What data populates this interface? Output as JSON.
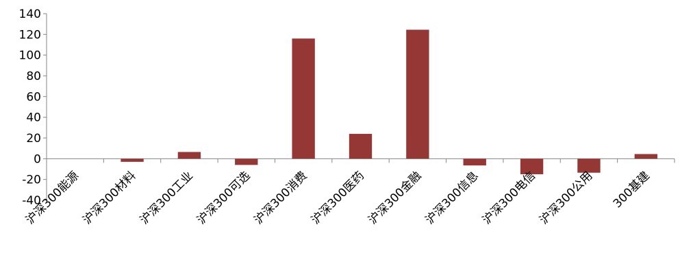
{
  "chart_data": {
    "type": "bar",
    "categories": [
      "沪深300能源",
      "沪深300材料",
      "沪深300工业",
      "沪深300可选",
      "沪深300消费",
      "沪深300医药",
      "沪深300金融",
      "沪深300信息",
      "沪深300电信",
      "沪深300公用",
      "300基建"
    ],
    "values": [
      0,
      -3,
      6.5,
      -6,
      116,
      24,
      124.5,
      -6.5,
      -15,
      -13.5,
      4.5
    ],
    "title": "",
    "xlabel": "",
    "ylabel": "",
    "ylim": [
      -40,
      140
    ],
    "yticks": [
      -40,
      -20,
      0,
      20,
      40,
      60,
      80,
      100,
      120,
      140
    ],
    "ytick_labels": [
      "-40",
      "-20",
      "0",
      "20",
      "40",
      "60",
      "80",
      "100",
      "120",
      "140"
    ],
    "bar_color": "#953735",
    "grid": false,
    "legend": "none"
  }
}
